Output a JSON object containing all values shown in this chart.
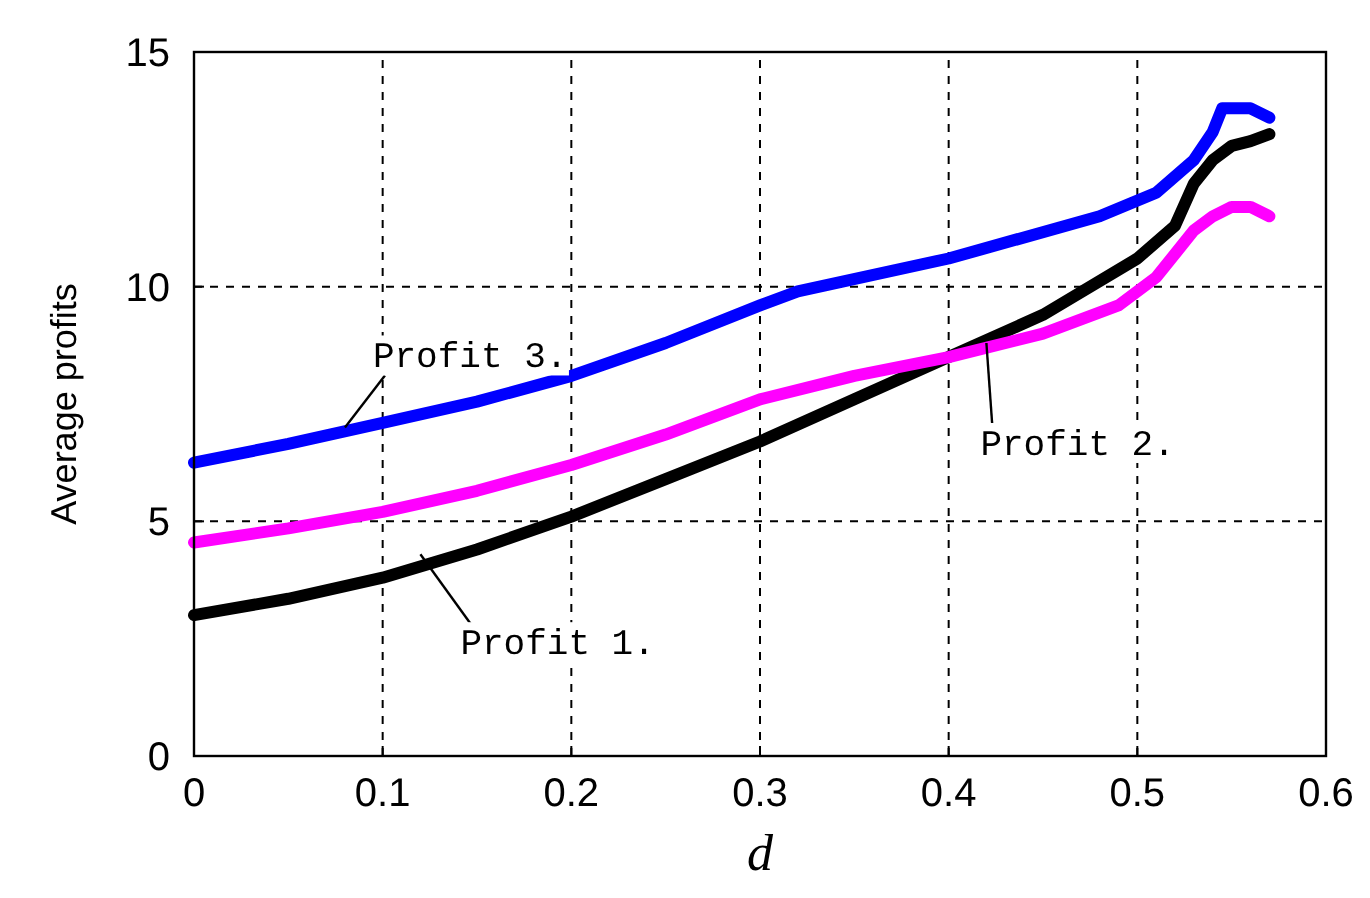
{
  "chart_data": {
    "type": "line",
    "xlabel": "d",
    "ylabel": "Average profits",
    "xlim": [
      0,
      0.6
    ],
    "ylim": [
      0,
      15
    ],
    "xticks": [
      0,
      0.1,
      0.2,
      0.3,
      0.4,
      0.5,
      0.6
    ],
    "yticks": [
      0,
      5,
      10,
      15
    ],
    "grid": true,
    "line_style": "solid",
    "series": [
      {
        "color": "#000000",
        "x": [
          0,
          0.05,
          0.1,
          0.15,
          0.2,
          0.25,
          0.3,
          0.35,
          0.4,
          0.45,
          0.5,
          0.52,
          0.53,
          0.54,
          0.55,
          0.56,
          0.57
        ],
        "values": [
          3.0,
          3.35,
          3.8,
          4.4,
          5.1,
          5.9,
          6.7,
          7.6,
          8.5,
          9.4,
          10.6,
          11.3,
          12.2,
          12.7,
          13.0,
          13.1,
          13.25
        ]
      },
      {
        "color": "#ff00ff",
        "x": [
          0,
          0.05,
          0.1,
          0.15,
          0.2,
          0.25,
          0.3,
          0.35,
          0.4,
          0.45,
          0.49,
          0.51,
          0.53,
          0.54,
          0.55,
          0.56,
          0.57
        ],
        "values": [
          4.55,
          4.85,
          5.2,
          5.65,
          6.2,
          6.85,
          7.6,
          8.1,
          8.5,
          9.0,
          9.6,
          10.2,
          11.2,
          11.5,
          11.7,
          11.7,
          11.5
        ]
      },
      {
        "color": "#0000ff",
        "x": [
          0,
          0.05,
          0.1,
          0.15,
          0.2,
          0.25,
          0.3,
          0.32,
          0.4,
          0.48,
          0.51,
          0.53,
          0.54,
          0.545,
          0.56,
          0.57
        ],
        "values": [
          6.25,
          6.65,
          7.1,
          7.55,
          8.1,
          8.8,
          9.6,
          9.9,
          10.6,
          11.5,
          12.0,
          12.7,
          13.3,
          13.8,
          13.8,
          13.6
        ]
      }
    ],
    "annotations": [
      {
        "text": "Profit 3.",
        "x": 0.08,
        "y": 7.0
      },
      {
        "text": "Profit 2.",
        "x": 0.42,
        "y": 8.8
      },
      {
        "text": "Profit 1.",
        "x": 0.12,
        "y": 4.3
      }
    ]
  }
}
